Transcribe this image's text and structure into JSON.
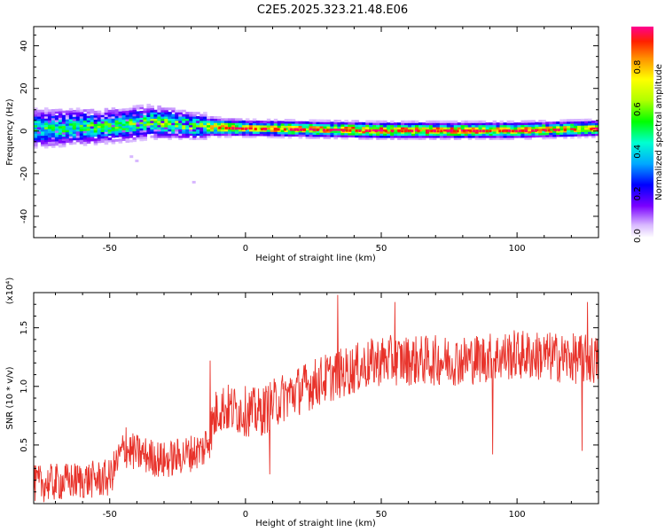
{
  "title": "C2E5.2025.323.21.48.E06",
  "chart_data": [
    {
      "type": "heatmap",
      "name": "spectrogram",
      "xlabel": "Height of straight line (km)",
      "ylabel": "Frequency (Hz)",
      "xlim": [
        -78,
        130
      ],
      "ylim": [
        -50,
        49
      ],
      "xticks": [
        -50,
        0,
        50,
        100
      ],
      "yticks": [
        -40,
        -20,
        0,
        20,
        40
      ],
      "colorbar": {
        "label": "Normalized spectral amplitude",
        "range": [
          0,
          1
        ],
        "ticks": [
          0.0,
          0.2,
          0.4,
          0.6,
          0.8
        ]
      },
      "band": [
        {
          "x": -75,
          "center_hz": 1,
          "half_width_hz": 7,
          "peak_amplitude": 0.55
        },
        {
          "x": -50,
          "center_hz": 2,
          "half_width_hz": 6,
          "peak_amplitude": 0.6
        },
        {
          "x": -35,
          "center_hz": 4,
          "half_width_hz": 6,
          "peak_amplitude": 0.6
        },
        {
          "x": -20,
          "center_hz": 2,
          "half_width_hz": 4,
          "peak_amplitude": 0.75
        },
        {
          "x": 0,
          "center_hz": 1,
          "half_width_hz": 3,
          "peak_amplitude": 0.9
        },
        {
          "x": 50,
          "center_hz": 0,
          "half_width_hz": 3,
          "peak_amplitude": 1.0
        },
        {
          "x": 100,
          "center_hz": 0,
          "half_width_hz": 3,
          "peak_amplitude": 0.95
        },
        {
          "x": 130,
          "center_hz": 1,
          "half_width_hz": 3,
          "peak_amplitude": 0.9
        }
      ],
      "isolated_points": [
        {
          "x": -42,
          "y": -12
        },
        {
          "x": -40,
          "y": -14
        },
        {
          "x": -19,
          "y": -24
        }
      ]
    },
    {
      "type": "line",
      "name": "snr",
      "xlabel": "Height of straight line (km)",
      "ylabel": "SNR (10 * v/v)",
      "scale_label": "(x10⁴)",
      "xlim": [
        -78,
        130
      ],
      "ylim": [
        0,
        1.8
      ],
      "xticks": [
        -50,
        0,
        50,
        100
      ],
      "yticks": [
        0.5,
        1.0,
        1.5
      ],
      "ytick_labels": [
        "0.5",
        "1.0",
        "1.5"
      ],
      "series": [
        {
          "name": "SNR",
          "color": "#e8322a",
          "trend": [
            {
              "x": -78,
              "y": 0.15
            },
            {
              "x": -50,
              "y": 0.2
            },
            {
              "x": -45,
              "y": 0.45
            },
            {
              "x": -30,
              "y": 0.35
            },
            {
              "x": -15,
              "y": 0.45
            },
            {
              "x": -10,
              "y": 0.8
            },
            {
              "x": 5,
              "y": 0.75
            },
            {
              "x": 15,
              "y": 0.9
            },
            {
              "x": 30,
              "y": 1.05
            },
            {
              "x": 50,
              "y": 1.2
            },
            {
              "x": 80,
              "y": 1.2
            },
            {
              "x": 100,
              "y": 1.25
            },
            {
              "x": 130,
              "y": 1.2
            }
          ],
          "noise_amplitude": 0.18,
          "spikes": [
            {
              "x": -44,
              "y": 0.65
            },
            {
              "x": -13,
              "y": 1.22
            },
            {
              "x": 9,
              "y": 0.25
            },
            {
              "x": 34,
              "y": 1.78
            },
            {
              "x": 55,
              "y": 1.72
            },
            {
              "x": 91,
              "y": 0.42
            },
            {
              "x": 124,
              "y": 0.45
            },
            {
              "x": 126,
              "y": 1.72
            }
          ]
        }
      ]
    }
  ]
}
